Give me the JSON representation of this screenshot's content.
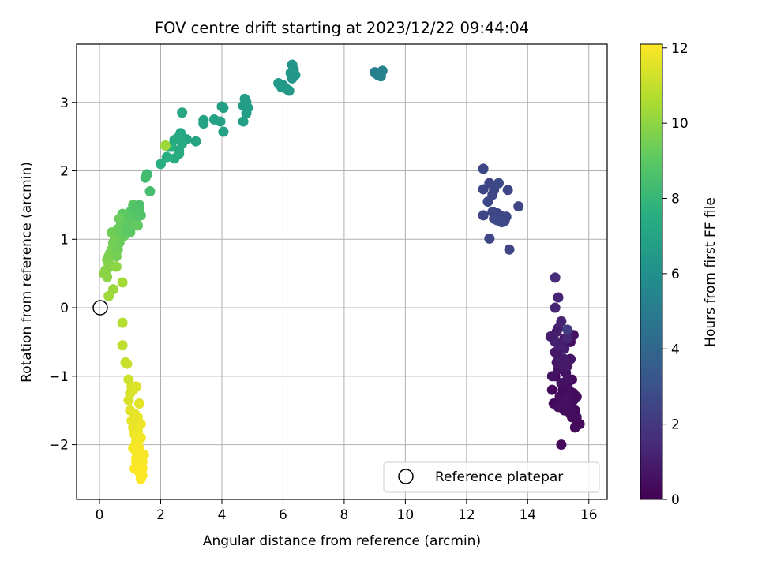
{
  "chart_data": {
    "type": "scatter",
    "title": "FOV centre drift starting at 2023/12/22 09:44:04",
    "xlabel": "Angular distance from reference (arcmin)",
    "ylabel": "Rotation from reference (arcmin)",
    "xlim": [
      -0.75,
      16.6
    ],
    "ylim": [
      -2.8,
      3.85
    ],
    "xticks": [
      "0",
      "2",
      "4",
      "6",
      "8",
      "10",
      "12",
      "14",
      "16"
    ],
    "yticks": [
      "−2",
      "−1",
      "0",
      "1",
      "2",
      "3"
    ],
    "grid": true,
    "legend": {
      "placement": "lower-right",
      "entries": [
        "Reference platepar"
      ]
    },
    "reference_point": {
      "x": 0.0,
      "y": 0.0,
      "label": "Reference platepar"
    },
    "colorbar": {
      "label": "Hours from first FF file",
      "colormap": "viridis",
      "range": [
        0,
        12.1
      ],
      "ticks": [
        "0",
        "2",
        "4",
        "6",
        "8",
        "10",
        "12"
      ]
    },
    "series": [
      {
        "x": [
          15.0,
          15.2,
          15.4,
          15.6,
          14.8,
          15.1,
          15.3,
          15.5,
          14.9,
          15.2,
          15.4,
          15.0,
          15.3,
          15.6,
          15.1,
          14.95,
          15.25,
          15.45,
          15.05,
          15.35,
          14.85,
          15.15,
          15.55,
          15.0,
          15.4,
          15.2,
          15.7,
          15.1,
          15.3,
          14.9,
          15.5,
          15.2,
          15.0,
          15.4,
          15.1,
          15.3,
          15.6,
          14.8,
          15.2,
          15.5,
          15.0,
          15.4,
          15.3,
          15.1,
          15.45,
          15.25,
          15.05,
          15.35,
          15.15,
          15.55,
          14.9,
          15.2,
          14.95,
          15.05,
          14.85,
          15.1,
          15.0,
          14.9,
          15.3,
          14.75
        ],
        "y": [
          -1.4,
          -1.5,
          -1.3,
          -1.6,
          -1.2,
          -1.1,
          -1.45,
          -1.35,
          -1.0,
          -1.25,
          -1.55,
          -0.9,
          -1.15,
          -1.7,
          -1.3,
          -0.8,
          -0.95,
          -1.05,
          -1.35,
          -1.2,
          -1.4,
          -0.85,
          -1.5,
          -0.7,
          -0.75,
          -0.6,
          -1.7,
          -0.55,
          -0.85,
          -0.5,
          -0.4,
          -0.45,
          -0.3,
          -0.5,
          -0.2,
          -1.05,
          -1.3,
          -1.0,
          -1.1,
          -1.25,
          -1.45,
          -1.55,
          -1.5,
          -1.4,
          -1.6,
          -1.35,
          -1.3,
          -1.45,
          -1.2,
          -1.75,
          -0.65,
          -0.75,
          -0.35,
          -0.55,
          -0.45,
          -2.0,
          0.15,
          0.0,
          -0.45,
          -0.42
        ],
        "c": [
          0.3,
          0.5,
          0.4,
          0.6,
          0.2,
          0.7,
          0.35,
          0.45,
          0.25,
          0.55,
          0.3,
          0.65,
          0.4,
          0.2,
          0.5,
          0.75,
          0.6,
          0.35,
          0.45,
          0.55,
          0.25,
          0.8,
          0.3,
          0.9,
          0.7,
          1.0,
          0.3,
          1.1,
          0.85,
          1.05,
          0.6,
          0.95,
          1.15,
          0.5,
          1.2,
          0.65,
          0.4,
          0.6,
          0.55,
          0.35,
          0.45,
          0.5,
          0.4,
          0.5,
          0.35,
          0.55,
          0.45,
          0.5,
          0.4,
          0.3,
          0.8,
          0.9,
          1.0,
          1.1,
          1.2,
          0.3,
          1.3,
          1.25,
          1.4,
          1.0
        ]
      },
      {
        "x": [
          15.3,
          14.9
        ],
        "y": [
          -0.32,
          0.44
        ],
        "c": [
          2.2,
          1.5
        ]
      },
      {
        "x": [
          12.55,
          12.75,
          12.9,
          13.05,
          13.35,
          12.55,
          12.85,
          13.0,
          13.25,
          13.7,
          12.7,
          12.9,
          12.55,
          13.3,
          12.75,
          13.4,
          12.85,
          13.0,
          13.1,
          13.15
        ],
        "y": [
          2.03,
          1.82,
          1.72,
          1.82,
          1.72,
          1.73,
          1.65,
          1.38,
          1.27,
          1.48,
          1.55,
          1.3,
          1.35,
          1.33,
          1.01,
          0.85,
          1.4,
          1.28,
          1.35,
          1.25
        ],
        "c": [
          2.6,
          2.5,
          2.6,
          2.7,
          2.5,
          2.6,
          2.55,
          2.45,
          2.6,
          2.5,
          2.65,
          2.55,
          2.5,
          2.6,
          2.55,
          2.5,
          2.6,
          2.7,
          2.55,
          2.65
        ]
      },
      {
        "x": [
          9.0,
          9.15,
          9.25,
          9.1,
          9.2
        ],
        "y": [
          3.44,
          3.43,
          3.46,
          3.4,
          3.38
        ],
        "c": [
          5.1,
          5.2,
          5.3,
          5.15,
          5.25
        ]
      },
      {
        "x": [
          6.3,
          6.35,
          6.25,
          6.4,
          6.3,
          6.2,
          6.0,
          5.85,
          5.95,
          6.1
        ],
        "y": [
          3.55,
          3.48,
          3.43,
          3.4,
          3.35,
          3.17,
          3.25,
          3.28,
          3.22,
          3.2
        ],
        "c": [
          6.2,
          6.25,
          6.3,
          6.35,
          6.3,
          6.4,
          6.45,
          6.5,
          6.5,
          6.45
        ]
      },
      {
        "x": [
          4.75,
          4.8,
          4.7,
          4.85,
          4.8,
          4.7,
          4.05,
          4.0,
          3.95,
          4.05,
          3.75,
          3.4,
          3.4,
          3.15,
          2.85,
          2.7
        ],
        "y": [
          3.05,
          3.0,
          2.95,
          2.92,
          2.84,
          2.72,
          2.92,
          2.94,
          2.72,
          2.57,
          2.75,
          2.74,
          2.69,
          2.43,
          2.46,
          2.85
        ],
        "c": [
          6.6,
          6.6,
          6.65,
          6.7,
          6.7,
          6.75,
          6.8,
          6.8,
          6.85,
          6.9,
          6.95,
          7.0,
          7.0,
          7.05,
          7.1,
          7.15
        ]
      },
      {
        "x": [
          2.65,
          2.55,
          2.45,
          2.7,
          2.6,
          2.35,
          2.6,
          2.45,
          2.2,
          2.0,
          2.25
        ],
        "y": [
          2.55,
          2.48,
          2.45,
          2.4,
          2.3,
          2.35,
          2.25,
          2.18,
          2.2,
          2.1,
          2.35
        ],
        "c": [
          7.2,
          7.25,
          7.3,
          7.3,
          7.35,
          7.4,
          7.45,
          7.5,
          7.55,
          7.6,
          7.65
        ]
      },
      {
        "x": [
          1.55,
          1.5,
          1.65,
          2.15
        ],
        "y": [
          1.95,
          1.9,
          1.7,
          2.37
        ],
        "c": [
          8.2,
          8.3,
          8.4,
          10.3
        ]
      },
      {
        "x": [
          1.3,
          1.35,
          1.2,
          1.1,
          1.0,
          1.25,
          0.95,
          1.15,
          0.9,
          0.85,
          0.8,
          1.3,
          1.15,
          1.05,
          0.95,
          1.0,
          0.75,
          0.7,
          0.6,
          0.65,
          0.55,
          0.5,
          0.45,
          0.5,
          0.4,
          0.4,
          0.35,
          0.3,
          0.25,
          0.3,
          0.35,
          0.2,
          0.15,
          0.25,
          0.55,
          0.45,
          0.3,
          0.75,
          0.7,
          0.65,
          0.6,
          0.55,
          0.85,
          0.5,
          0.9,
          0.95
        ],
        "y": [
          1.45,
          1.35,
          1.3,
          1.5,
          1.4,
          1.2,
          1.25,
          1.2,
          1.15,
          1.1,
          1.05,
          1.5,
          1.45,
          1.35,
          1.3,
          1.1,
          1.37,
          1.25,
          1.15,
          1.3,
          1.05,
          1.0,
          0.95,
          0.9,
          1.1,
          0.85,
          0.8,
          0.75,
          0.7,
          0.65,
          0.6,
          0.55,
          0.5,
          0.45,
          0.6,
          0.27,
          0.17,
          0.37,
          1.05,
          0.95,
          0.85,
          0.75,
          1.2,
          1.0,
          1.1,
          1.15
        ],
        "c": [
          8.6,
          8.7,
          8.8,
          8.9,
          9.0,
          9.05,
          9.1,
          9.15,
          9.2,
          9.25,
          9.3,
          8.65,
          8.75,
          8.85,
          8.95,
          9.0,
          9.1,
          9.2,
          9.3,
          9.3,
          9.35,
          9.4,
          9.45,
          9.5,
          9.4,
          9.55,
          9.6,
          9.65,
          9.7,
          9.75,
          9.8,
          9.85,
          9.9,
          9.95,
          10.0,
          10.2,
          10.3,
          10.4,
          9.2,
          9.3,
          9.4,
          9.5,
          9.1,
          9.45,
          9.05,
          9.0
        ]
      },
      {
        "x": [
          0.75,
          0.75,
          0.85,
          0.9,
          0.95,
          1.05,
          1.0,
          0.95,
          1.1,
          1.2,
          1.0,
          1.15,
          1.3,
          1.05,
          1.25,
          1.1,
          1.35,
          1.15,
          1.2,
          1.25,
          1.1,
          1.3,
          1.35,
          1.2,
          1.4,
          1.25,
          1.15,
          1.3,
          1.4,
          1.35,
          1.2,
          1.3,
          1.25,
          1.45,
          1.35,
          1.4,
          1.2,
          1.3
        ],
        "y": [
          -0.22,
          -0.55,
          -0.8,
          -0.82,
          -1.05,
          -1.15,
          -1.25,
          -1.35,
          -1.2,
          -1.15,
          -1.5,
          -1.55,
          -1.4,
          -1.65,
          -1.6,
          -1.75,
          -1.7,
          -1.85,
          -1.95,
          -2.0,
          -2.05,
          -2.1,
          -2.15,
          -2.2,
          -2.25,
          -2.3,
          -2.35,
          -2.4,
          -2.45,
          -2.5,
          -2.1,
          -2.2,
          -1.8,
          -2.15,
          -1.9,
          -2.35,
          -2.25,
          -2.05
        ],
        "c": [
          10.7,
          10.9,
          11.0,
          11.1,
          11.2,
          11.3,
          11.35,
          11.4,
          11.45,
          11.5,
          11.55,
          11.6,
          11.6,
          11.65,
          11.7,
          11.75,
          11.8,
          11.85,
          11.9,
          11.9,
          11.95,
          12.0,
          12.0,
          12.05,
          12.05,
          12.1,
          12.1,
          12.1,
          12.1,
          12.1,
          11.95,
          12.0,
          11.8,
          12.0,
          11.9,
          12.1,
          12.05,
          12.0
        ]
      }
    ]
  }
}
